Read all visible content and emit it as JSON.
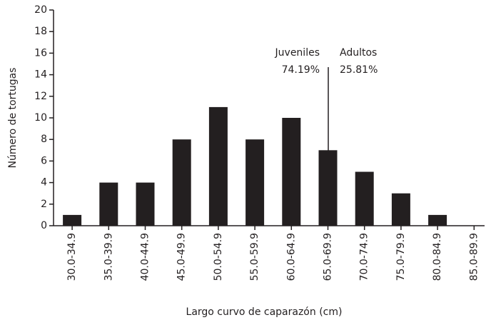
{
  "chart_data": {
    "type": "bar",
    "xlabel": "Largo curvo de caparazón (cm)",
    "ylabel": "Número de tortugas",
    "categories": [
      "30.0-34.9",
      "35.0-39.9",
      "40.0-44.9",
      "45.0-49.9",
      "50.0-54.9",
      "55.0-59.9",
      "60.0-64.9",
      "65.0-69.9",
      "70.0-74.9",
      "75.0-79.9",
      "80.0-84.9",
      "85.0-89.9"
    ],
    "values": [
      1,
      4,
      4,
      8,
      11,
      8,
      10,
      7,
      5,
      3,
      1,
      0
    ],
    "color": "#231f20",
    "ylim": [
      0,
      20
    ],
    "yticks": [
      0,
      2,
      4,
      6,
      8,
      10,
      12,
      14,
      16,
      18,
      20
    ],
    "grid": false,
    "annotations": [
      "Juveniles",
      "74.19%",
      "Adultos",
      "25.81%"
    ]
  }
}
